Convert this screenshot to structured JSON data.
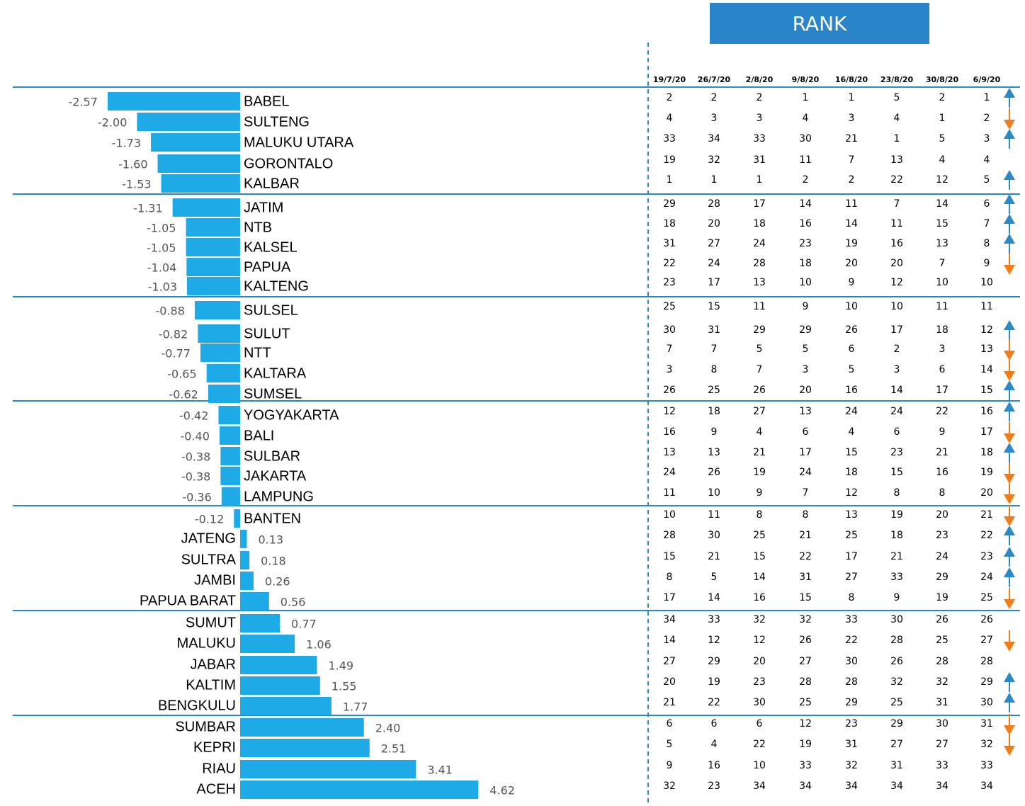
{
  "chart_data": {
    "type": "bar",
    "orientation": "horizontal",
    "color": "#1eaae6",
    "categories": [
      "BABEL",
      "SULTENG",
      "MALUKU UTARA",
      "GORONTALO",
      "KALBAR",
      "JATIM",
      "NTB",
      "KALSEL",
      "PAPUA",
      "KALTENG",
      "SULSEL",
      "SULUT",
      "NTT",
      "KALTARA",
      "SUMSEL",
      "YOGYAKARTA",
      "BALI",
      "SULBAR",
      "JAKARTA",
      "LAMPUNG",
      "BANTEN",
      "JATENG",
      "SULTRA",
      "JAMBI",
      "PAPUA BARAT",
      "SUMUT",
      "MALUKU",
      "JABAR",
      "KALTIM",
      "BENGKULU",
      "SUMBAR",
      "KEPRI",
      "RIAU",
      "ACEH"
    ],
    "values": [
      -2.57,
      -2.0,
      -1.73,
      -1.6,
      -1.53,
      -1.31,
      -1.05,
      -1.05,
      -1.04,
      -1.03,
      -0.88,
      -0.82,
      -0.77,
      -0.65,
      -0.62,
      -0.42,
      -0.4,
      -0.38,
      -0.38,
      -0.36,
      -0.12,
      0.13,
      0.18,
      0.26,
      0.56,
      0.77,
      1.06,
      1.49,
      1.55,
      1.77,
      2.4,
      2.51,
      3.41,
      4.62
    ],
    "value_labels": [
      "-2.57",
      "-2.00",
      "-1.73",
      "-1.60",
      "-1.53",
      "-1.31",
      "-1.05",
      "-1.05",
      "-1.04",
      "-1.03",
      "-0.88",
      "-0.82",
      "-0.77",
      "-0.65",
      "-0.62",
      "-0.42",
      "-0.40",
      "-0.38",
      "-0.38",
      "-0.36",
      "-0.12",
      "0.13",
      "0.18",
      "0.26",
      "0.56",
      "0.77",
      "1.06",
      "1.49",
      "1.55",
      "1.77",
      "2.40",
      "2.51",
      "3.41",
      "4.62"
    ]
  },
  "rank_table": {
    "title": "RANK",
    "columns": [
      "19/7/20",
      "26/7/20",
      "2/8/20",
      "9/8/20",
      "16/8/20",
      "23/8/20",
      "30/8/20",
      "6/9/20"
    ],
    "trend_colors": {
      "up": "#2a8ac8",
      "down": "#f07d1a"
    },
    "rows": [
      [
        2,
        2,
        2,
        1,
        1,
        5,
        2,
        1
      ],
      [
        4,
        3,
        3,
        4,
        3,
        4,
        1,
        2
      ],
      [
        33,
        34,
        33,
        30,
        21,
        1,
        5,
        3
      ],
      [
        19,
        32,
        31,
        11,
        7,
        13,
        4,
        4
      ],
      [
        1,
        1,
        1,
        2,
        2,
        22,
        12,
        5
      ],
      [
        29,
        28,
        17,
        14,
        11,
        7,
        14,
        6
      ],
      [
        18,
        20,
        18,
        16,
        14,
        11,
        15,
        7
      ],
      [
        31,
        27,
        24,
        23,
        19,
        16,
        13,
        8
      ],
      [
        22,
        24,
        28,
        18,
        20,
        20,
        7,
        9
      ],
      [
        23,
        17,
        13,
        10,
        9,
        12,
        10,
        10
      ],
      [
        25,
        15,
        11,
        9,
        10,
        10,
        11,
        11
      ],
      [
        30,
        31,
        29,
        29,
        26,
        17,
        18,
        12
      ],
      [
        7,
        7,
        5,
        5,
        6,
        2,
        3,
        13
      ],
      [
        3,
        8,
        7,
        3,
        5,
        3,
        6,
        14
      ],
      [
        26,
        25,
        26,
        20,
        16,
        14,
        17,
        15
      ],
      [
        12,
        18,
        27,
        13,
        24,
        24,
        22,
        16
      ],
      [
        16,
        9,
        4,
        6,
        4,
        6,
        9,
        17
      ],
      [
        13,
        13,
        21,
        17,
        15,
        23,
        21,
        18
      ],
      [
        24,
        26,
        19,
        24,
        18,
        15,
        16,
        19
      ],
      [
        11,
        10,
        9,
        7,
        12,
        8,
        8,
        20
      ],
      [
        10,
        11,
        8,
        8,
        13,
        19,
        20,
        21
      ],
      [
        28,
        30,
        25,
        21,
        25,
        18,
        23,
        22
      ],
      [
        15,
        21,
        15,
        22,
        17,
        21,
        24,
        23
      ],
      [
        8,
        5,
        14,
        31,
        27,
        33,
        29,
        24
      ],
      [
        17,
        14,
        16,
        15,
        8,
        9,
        19,
        25
      ],
      [
        34,
        33,
        32,
        32,
        33,
        30,
        26,
        26
      ],
      [
        14,
        12,
        12,
        26,
        22,
        28,
        25,
        27
      ],
      [
        27,
        29,
        20,
        27,
        30,
        26,
        28,
        28
      ],
      [
        20,
        19,
        23,
        28,
        28,
        32,
        32,
        29
      ],
      [
        21,
        22,
        30,
        25,
        29,
        25,
        31,
        30
      ],
      [
        6,
        6,
        6,
        12,
        23,
        29,
        30,
        31
      ],
      [
        5,
        4,
        22,
        19,
        31,
        27,
        27,
        32
      ],
      [
        9,
        16,
        10,
        33,
        32,
        31,
        33,
        33
      ],
      [
        32,
        23,
        34,
        34,
        34,
        34,
        34,
        34
      ]
    ],
    "trend": [
      "up",
      "down",
      "up",
      null,
      "up",
      "up",
      "up",
      "up",
      "down",
      null,
      null,
      "up",
      "down",
      "down",
      "up",
      "up",
      "down",
      "up",
      "down",
      "down",
      "down",
      "up",
      "up",
      "up",
      "down",
      null,
      "down",
      null,
      "up",
      "up",
      "down",
      "down",
      null,
      null
    ]
  }
}
